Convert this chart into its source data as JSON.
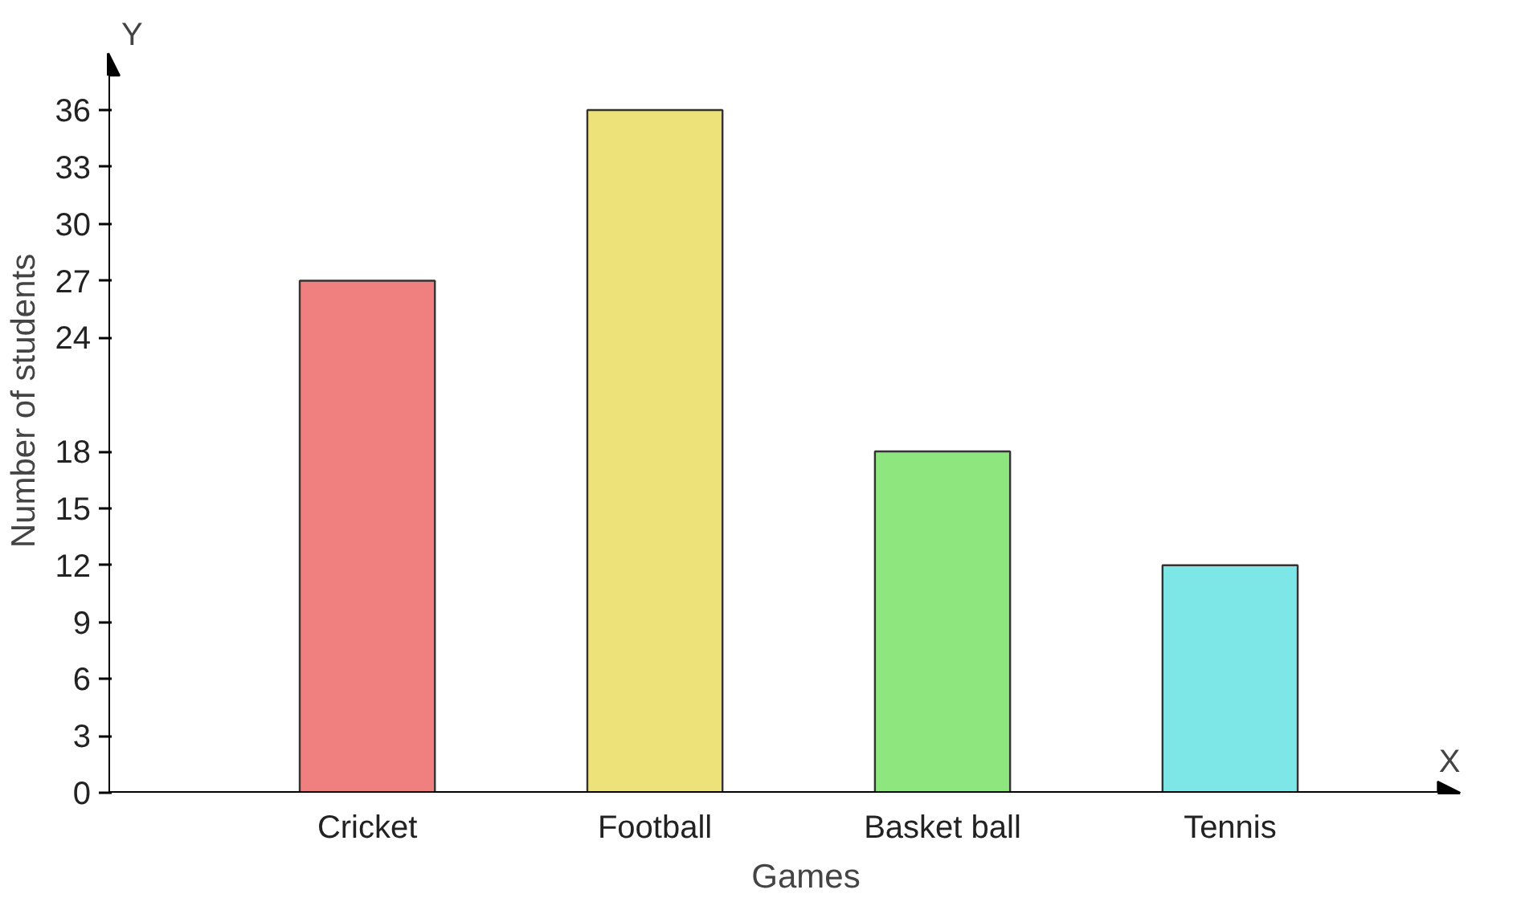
{
  "chart_data": {
    "type": "bar",
    "xlabel": "Games",
    "ylabel": "Number of students",
    "categories": [
      "Cricket",
      "Football",
      "Basket ball",
      "Tennis"
    ],
    "values": [
      27,
      36,
      18,
      12
    ],
    "colors": [
      "#f08080",
      "#ede17a",
      "#8ee67e",
      "#7de6e6"
    ],
    "ylim": [
      0,
      39
    ],
    "yticks": [
      0,
      3,
      6,
      9,
      12,
      15,
      18,
      24,
      27,
      30,
      33,
      36
    ],
    "grid": false,
    "annotations": [
      "Y",
      "X"
    ]
  }
}
